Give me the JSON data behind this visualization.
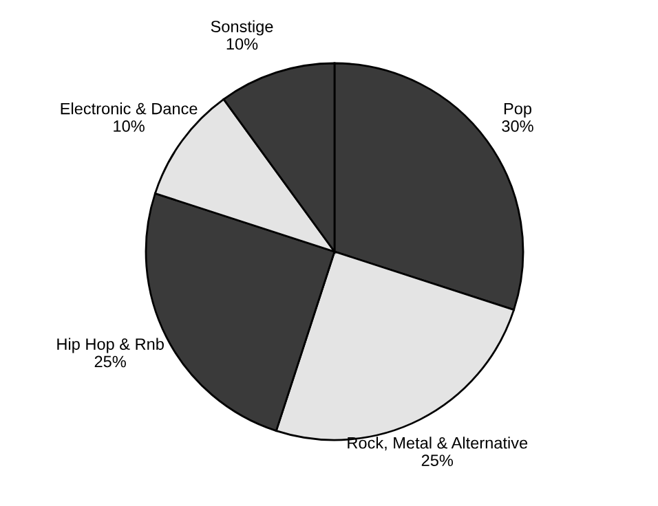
{
  "chart_data": {
    "type": "pie",
    "categories": [
      "Pop",
      "Rock, Metal & Alternative",
      "Hip Hop & Rnb",
      "Electronic & Dance",
      "Sonstige"
    ],
    "values": [
      30,
      25,
      25,
      10,
      10
    ],
    "value_labels": [
      "30%",
      "25%",
      "25%",
      "10%",
      "10%"
    ],
    "colors": [
      "#3a3a3a",
      "#e4e4e4",
      "#3a3a3a",
      "#e4e4e4",
      "#3a3a3a"
    ],
    "legend": false
  }
}
